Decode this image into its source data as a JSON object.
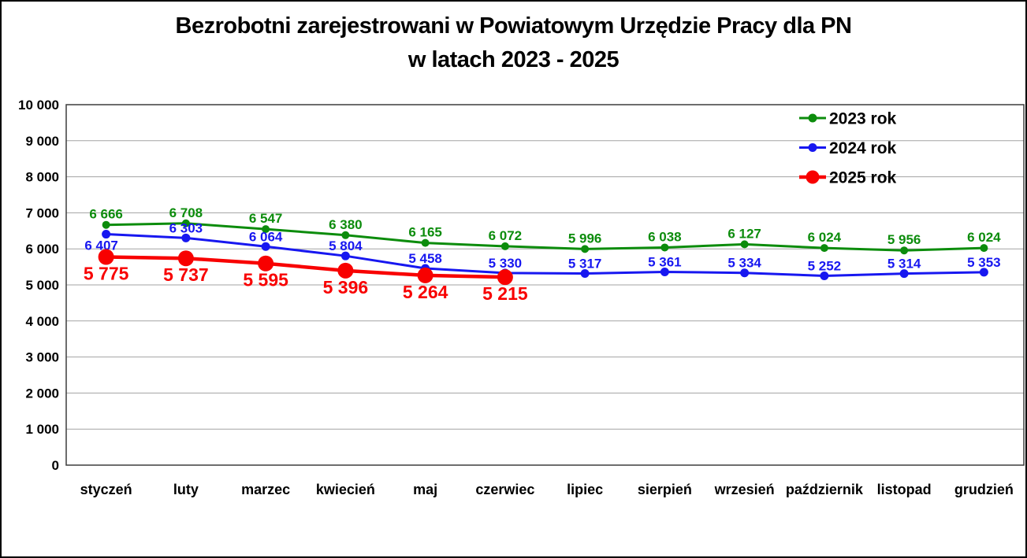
{
  "title": {
    "line1": "Bezrobotni zarejestrowani w Powiatowym Urzędzie Pracy dla PN",
    "line2": "w latach 2023 - 2025"
  },
  "chart_data": {
    "type": "line",
    "categories": [
      "styczeń",
      "luty",
      "marzec",
      "kwiecień",
      "maj",
      "czerwiec",
      "lipiec",
      "sierpień",
      "wrzesień",
      "październik",
      "listopad",
      "grudzień"
    ],
    "series": [
      {
        "name": "2023 rok",
        "color": "#0c8c0c",
        "marker": "circle",
        "marker_size": "small",
        "label_position": "above",
        "values": [
          6666,
          6708,
          6547,
          6380,
          6165,
          6072,
          5996,
          6038,
          6127,
          6024,
          5956,
          6024
        ]
      },
      {
        "name": "2024 rok",
        "color": "#1717f0",
        "marker": "circle",
        "marker_size": "small",
        "label_position": "above",
        "label_overrides": {
          "0": "below"
        },
        "values": [
          6407,
          6303,
          6064,
          5804,
          5458,
          5330,
          5317,
          5361,
          5334,
          5252,
          5314,
          5353
        ]
      },
      {
        "name": "2025 rok",
        "color": "#f80000",
        "marker": "circle",
        "marker_size": "large",
        "label_position": "below",
        "values": [
          5775,
          5737,
          5595,
          5396,
          5264,
          5215
        ]
      }
    ],
    "xlabel": "",
    "ylabel": "",
    "ylim": [
      0,
      10000
    ],
    "ytick_step": 1000,
    "grid": true,
    "gridline_color": "#a3a3a3",
    "axis_border_color": "#3d3d3d",
    "text_color": "#000000",
    "legend_position": "top-right",
    "legend_labels": [
      "2023 rok",
      "2024 rok",
      "2025 rok"
    ],
    "number_format": "space-thousands"
  }
}
